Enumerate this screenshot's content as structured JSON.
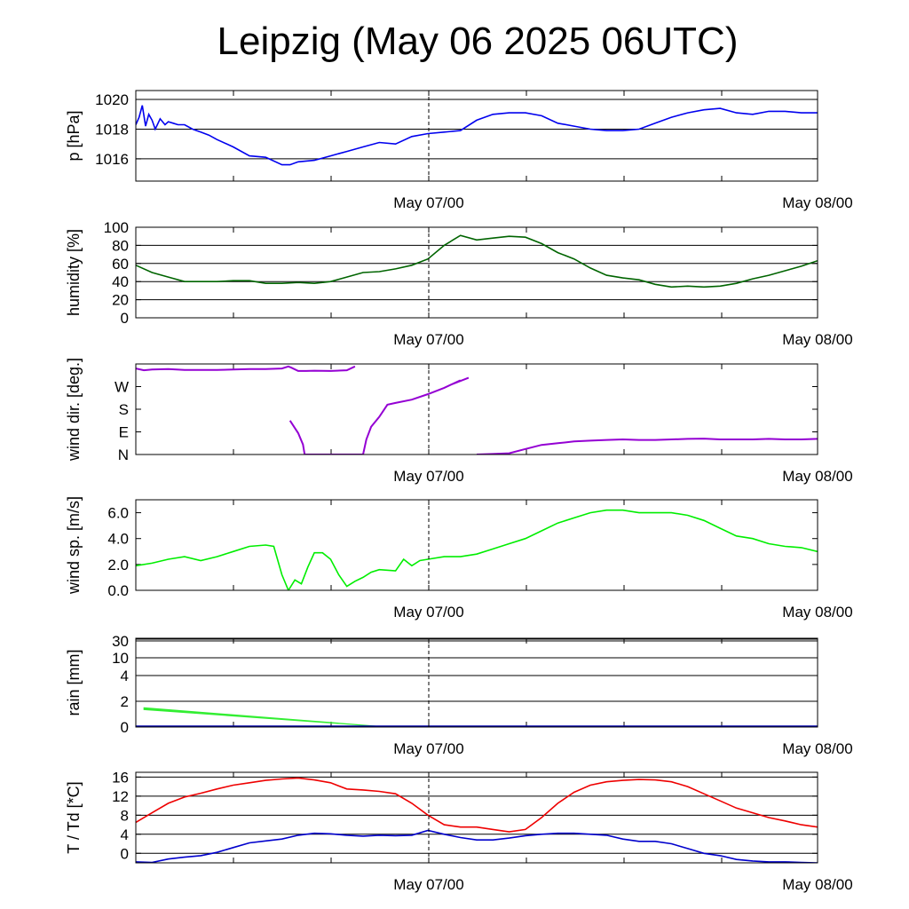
{
  "title": "Leipzig (May 06 2025 06UTC)",
  "chart_data": [
    {
      "type": "line",
      "ylabel": "p [hPa]",
      "ylim": [
        1014.5,
        1020.6
      ],
      "yticks": [
        1016,
        1018,
        1020
      ],
      "yticklabels": [
        "1016",
        "1018",
        "1020"
      ],
      "grid": true,
      "xlim": [
        0,
        42
      ],
      "xtick_labels": [
        "May 07/00",
        "May 08/00"
      ],
      "x": [
        0,
        0.2,
        0.4,
        0.6,
        0.8,
        1.0,
        1.2,
        1.5,
        1.8,
        2.0,
        2.3,
        2.6,
        3,
        3.5,
        4,
        4.5,
        5,
        6,
        7,
        8,
        9,
        9.5,
        10,
        11,
        12,
        13,
        14,
        15,
        16,
        17,
        18,
        19,
        20,
        21,
        22,
        23,
        24,
        25,
        26,
        27,
        28,
        29,
        30,
        31,
        32,
        33,
        34,
        35,
        36,
        37,
        38,
        39,
        40,
        41,
        42
      ],
      "series": [
        {
          "color": "#0000ee",
          "values": [
            1018.3,
            1018.8,
            1019.6,
            1018.2,
            1019.0,
            1018.6,
            1018.0,
            1018.7,
            1018.3,
            1018.5,
            1018.4,
            1018.3,
            1018.3,
            1018.0,
            1017.8,
            1017.6,
            1017.3,
            1016.8,
            1016.2,
            1016.1,
            1015.6,
            1015.6,
            1015.8,
            1015.9,
            1016.2,
            1016.5,
            1016.8,
            1017.1,
            1017.0,
            1017.5,
            1017.7,
            1017.8,
            1017.9,
            1018.6,
            1019.0,
            1019.1,
            1019.1,
            1018.9,
            1018.4,
            1018.2,
            1018.0,
            1017.9,
            1017.9,
            1018.0,
            1018.4,
            1018.8,
            1019.1,
            1019.3,
            1019.4,
            1019.1,
            1019.0,
            1019.2,
            1019.2,
            1019.1,
            1019.1
          ]
        }
      ]
    },
    {
      "type": "line",
      "ylabel": "humidity [%]",
      "ylim": [
        0,
        100
      ],
      "yticks": [
        0,
        20,
        40,
        60,
        80,
        100
      ],
      "yticklabels": [
        "0",
        "20",
        "40",
        "60",
        "80",
        "100"
      ],
      "grid": true,
      "xlim": [
        0,
        42
      ],
      "xtick_labels": [
        "May 07/00",
        "May 08/00"
      ],
      "x": [
        0,
        1,
        2,
        3,
        4,
        5,
        6,
        7,
        8,
        9,
        10,
        11,
        12,
        13,
        14,
        15,
        16,
        17,
        18,
        19,
        20,
        21,
        22,
        23,
        24,
        25,
        26,
        27,
        28,
        29,
        30,
        31,
        32,
        33,
        34,
        35,
        36,
        37,
        38,
        39,
        40,
        41,
        42
      ],
      "series": [
        {
          "color": "#006400",
          "values": [
            58,
            50,
            45,
            40,
            40,
            40,
            41,
            41,
            38,
            38,
            39,
            38,
            40,
            45,
            50,
            51,
            54,
            58,
            65,
            80,
            91,
            86,
            88,
            90,
            89,
            82,
            72,
            65,
            55,
            47,
            44,
            42,
            37,
            34,
            35,
            34,
            35,
            38,
            43,
            47,
            52,
            57,
            63
          ]
        }
      ]
    },
    {
      "type": "scatter",
      "ylabel": "wind dir. [deg.]",
      "ylim": [
        0,
        360
      ],
      "yticks": [
        0,
        90,
        180,
        270
      ],
      "yticklabels": [
        "N",
        "E",
        "S",
        "W"
      ],
      "grid": false,
      "xlim": [
        0,
        42
      ],
      "xtick_labels": [
        "May 07/00",
        "May 08/00"
      ],
      "x": [
        0,
        0.5,
        1,
        2,
        3,
        4,
        5,
        6,
        7,
        8,
        9,
        9.4,
        9.6,
        10,
        10.5,
        11,
        12,
        13,
        13.5,
        9.5,
        10,
        10.3,
        10.4,
        14,
        14.2,
        14.5,
        15,
        15.5,
        16,
        17,
        18,
        19,
        20,
        19.5,
        20.5,
        21,
        22,
        23,
        24,
        25,
        26,
        27,
        28,
        29,
        30,
        31,
        32,
        33,
        34,
        35,
        36,
        37,
        38,
        39,
        40,
        41,
        42
      ],
      "series": [
        {
          "color": "#9400d3",
          "values": [
            342,
            335,
            338,
            340,
            336,
            336,
            336,
            338,
            340,
            340,
            342,
            350,
            345,
            332,
            332,
            333,
            332,
            335,
            350,
            135,
            85,
            40,
            0,
            0,
            60,
            110,
            150,
            198,
            205,
            218,
            240,
            265,
            295,
            280,
            305,
            0,
            2,
            5,
            22,
            38,
            45,
            52,
            55,
            58,
            60,
            58,
            58,
            60,
            62,
            63,
            60,
            60,
            60,
            62,
            60,
            60,
            62
          ]
        }
      ]
    },
    {
      "type": "line",
      "ylabel": "wind sp. [m/s]",
      "ylim": [
        0,
        7
      ],
      "yticks": [
        0,
        2,
        4,
        6
      ],
      "yticklabels": [
        "0.0",
        "2.0",
        "4.0",
        "6.0"
      ],
      "grid": false,
      "xlim": [
        0,
        42
      ],
      "xtick_labels": [
        "May 07/00",
        "May 08/00"
      ],
      "x": [
        0,
        1,
        2,
        3,
        4,
        5,
        6,
        7,
        8,
        8.5,
        9,
        9.4,
        9.8,
        10.2,
        10.6,
        11,
        11.5,
        12,
        12.5,
        13,
        13.5,
        14,
        14.5,
        15,
        16,
        16.5,
        17,
        17.5,
        18,
        19,
        20,
        21,
        22,
        23,
        24,
        25,
        26,
        27,
        28,
        29,
        30,
        31,
        32,
        33,
        34,
        35,
        36,
        37,
        38,
        39,
        40,
        41,
        42
      ],
      "series": [
        {
          "color": "#00ee00",
          "values": [
            1.9,
            2.1,
            2.4,
            2.6,
            2.3,
            2.6,
            3.0,
            3.4,
            3.5,
            3.4,
            1.2,
            0.0,
            0.8,
            0.5,
            1.8,
            2.9,
            2.9,
            2.4,
            1.2,
            0.3,
            0.7,
            1.0,
            1.4,
            1.6,
            1.5,
            2.4,
            1.9,
            2.3,
            2.4,
            2.6,
            2.6,
            2.8,
            3.2,
            3.6,
            4.0,
            4.6,
            5.2,
            5.6,
            6.0,
            6.2,
            6.2,
            6.0,
            6.0,
            6.0,
            5.8,
            5.4,
            4.8,
            4.2,
            4.0,
            3.6,
            3.4,
            3.3,
            3.0
          ]
        }
      ]
    },
    {
      "type": "area",
      "ylabel": "rain [mm]",
      "yticks": [
        0,
        2,
        4,
        10,
        30
      ],
      "yticklabels": [
        "0",
        "2",
        "4",
        "10",
        "30"
      ],
      "grid": true,
      "xlim": [
        0,
        42
      ],
      "xtick_labels": [
        "May 07/00",
        "May 08/00"
      ],
      "x": [
        0.5,
        15.5
      ],
      "series": [
        {
          "color": "#33ee33",
          "upper": [
            1.5,
            0.0
          ],
          "lower": [
            1.35,
            0.0
          ]
        }
      ]
    },
    {
      "type": "line",
      "ylabel": "T / Td [*C]",
      "ylim": [
        -2,
        17
      ],
      "yticks": [
        0,
        4,
        8,
        12,
        16
      ],
      "yticklabels": [
        "0",
        "4",
        "8",
        "12",
        "16"
      ],
      "grid": true,
      "xlim": [
        0,
        42
      ],
      "xtick_labels": [
        "May 07/00",
        "May 08/00"
      ],
      "x": [
        0,
        1,
        2,
        3,
        4,
        5,
        6,
        7,
        8,
        9,
        10,
        11,
        12,
        13,
        14,
        15,
        16,
        17,
        18,
        19,
        20,
        21,
        22,
        23,
        24,
        25,
        26,
        27,
        28,
        29,
        30,
        31,
        32,
        33,
        34,
        35,
        36,
        37,
        38,
        39,
        40,
        41,
        42
      ],
      "series": [
        {
          "color": "#ee0000",
          "values": [
            6.5,
            8.5,
            10.5,
            11.8,
            12.6,
            13.5,
            14.3,
            14.8,
            15.3,
            15.6,
            15.8,
            15.4,
            14.8,
            13.5,
            13.3,
            13.0,
            12.5,
            10.5,
            8.0,
            6.0,
            5.5,
            5.5,
            5.0,
            4.5,
            5.0,
            7.5,
            10.5,
            12.8,
            14.3,
            15.0,
            15.3,
            15.5,
            15.4,
            15.0,
            14.0,
            12.5,
            11.0,
            9.5,
            8.5,
            7.5,
            6.8,
            6.0,
            5.5
          ]
        },
        {
          "color": "#0000cc",
          "values": [
            -1.8,
            -1.9,
            -1.2,
            -0.8,
            -0.5,
            0.2,
            1.2,
            2.2,
            2.6,
            3.0,
            3.8,
            4.2,
            4.1,
            3.8,
            3.6,
            3.8,
            3.7,
            3.8,
            4.8,
            4.0,
            3.3,
            2.8,
            2.8,
            3.2,
            3.7,
            4.0,
            4.2,
            4.2,
            4.0,
            3.8,
            3.0,
            2.5,
            2.5,
            2.0,
            1.0,
            0.0,
            -0.5,
            -1.3,
            -1.6,
            -1.8,
            -1.8,
            -1.9,
            -2.0
          ]
        }
      ]
    }
  ]
}
